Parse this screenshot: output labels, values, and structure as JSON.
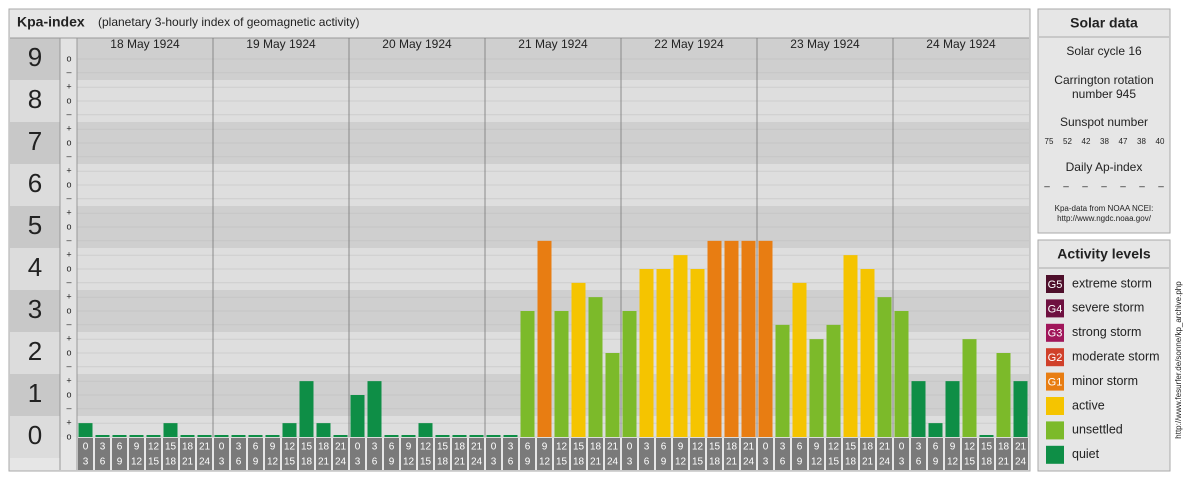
{
  "chart_data": {
    "type": "bar",
    "title": "Kpa-index",
    "subtitle": "(planetary 3-hourly index of geomagnetic activity)",
    "days": [
      "18 May 1924",
      "19 May 1924",
      "20 May 1924",
      "21 May 1924",
      "22 May 1924",
      "23 May 1924",
      "24 May 1924"
    ],
    "hours": [
      0,
      3,
      6,
      9,
      12,
      15,
      18,
      21,
      24
    ],
    "values": [
      0.33,
      0,
      0,
      0,
      0,
      0.33,
      0,
      0,
      0,
      0,
      0,
      0,
      0.33,
      1.33,
      0.33,
      0,
      1,
      1.33,
      0,
      0,
      0.33,
      0,
      0,
      0,
      0,
      0,
      3,
      4.67,
      3,
      3.67,
      3.33,
      2,
      3,
      4,
      4,
      4.33,
      4,
      4.67,
      4.67,
      4.67,
      4.67,
      2.67,
      3.67,
      2.33,
      2.67,
      4.33,
      4,
      3.33,
      3,
      1.33,
      0.33,
      1.33,
      2.33,
      0,
      2,
      1.33
    ],
    "colors": [
      "#0e8e46",
      "#0e8e46",
      "#0e8e46",
      "#0e8e46",
      "#0e8e46",
      "#0e8e46",
      "#0e8e46",
      "#0e8e46",
      "#0e8e46",
      "#0e8e46",
      "#0e8e46",
      "#0e8e46",
      "#0e8e46",
      "#0e8e46",
      "#0e8e46",
      "#0e8e46",
      "#0e8e46",
      "#0e8e46",
      "#0e8e46",
      "#0e8e46",
      "#0e8e46",
      "#0e8e46",
      "#0e8e46",
      "#0e8e46",
      "#0e8e46",
      "#0e8e46",
      "#7cba2a",
      "#e87d12",
      "#7cba2a",
      "#f5c400",
      "#7cba2a",
      "#7cba2a",
      "#7cba2a",
      "#f5c400",
      "#f5c400",
      "#f5c400",
      "#f5c400",
      "#e87d12",
      "#e87d12",
      "#e87d12",
      "#e87d12",
      "#7cba2a",
      "#f5c400",
      "#7cba2a",
      "#7cba2a",
      "#f5c400",
      "#f5c400",
      "#7cba2a",
      "#7cba2a",
      "#0e8e46",
      "#0e8e46",
      "#0e8e46",
      "#7cba2a",
      "#0e8e46",
      "#7cba2a",
      "#0e8e46"
    ],
    "ylim": [
      0,
      9.5
    ],
    "yticks": [
      0,
      1,
      2,
      3,
      4,
      5,
      6,
      7,
      8,
      9
    ],
    "minor_yticks": [
      {
        "value": 0,
        "label": "o"
      },
      {
        "value": 0.33,
        "label": "+"
      },
      {
        "value": 0.67,
        "label": "–"
      },
      {
        "value": 1,
        "label": "o"
      },
      {
        "value": 1.33,
        "label": "+"
      },
      {
        "value": 1.67,
        "label": "–"
      },
      {
        "value": 2,
        "label": "o"
      },
      {
        "value": 2.33,
        "label": "+"
      },
      {
        "value": 2.67,
        "label": "–"
      },
      {
        "value": 3,
        "label": "o"
      },
      {
        "value": 3.33,
        "label": "+"
      },
      {
        "value": 3.67,
        "label": "–"
      },
      {
        "value": 4,
        "label": "o"
      },
      {
        "value": 4.33,
        "label": "+"
      },
      {
        "value": 4.67,
        "label": "–"
      },
      {
        "value": 5,
        "label": "o"
      },
      {
        "value": 5.33,
        "label": "+"
      },
      {
        "value": 5.67,
        "label": "–"
      },
      {
        "value": 6,
        "label": "o"
      },
      {
        "value": 6.33,
        "label": "+"
      },
      {
        "value": 6.67,
        "label": "–"
      },
      {
        "value": 7,
        "label": "o"
      },
      {
        "value": 7.33,
        "label": "+"
      },
      {
        "value": 7.67,
        "label": "–"
      },
      {
        "value": 8,
        "label": "o"
      },
      {
        "value": 8.33,
        "label": "+"
      },
      {
        "value": 8.67,
        "label": "–"
      },
      {
        "value": 9,
        "label": "o"
      }
    ],
    "grid": true
  },
  "solar_data": {
    "title": "Solar data",
    "cycle": "Solar cycle 16",
    "carrington": [
      "Carrington rotation",
      "number 945"
    ],
    "sunspot_label": "Sunspot number",
    "sunspots": [
      75,
      52,
      42,
      38,
      47,
      38,
      40
    ],
    "ap_label": "Daily Ap-index",
    "ap": [
      "–",
      "–",
      "–",
      "–",
      "–",
      "–",
      "–"
    ],
    "source": [
      "Kpa-data from NOAA NCEI:",
      "http://www.ngdc.noaa.gov/"
    ]
  },
  "activity": {
    "title": "Activity levels",
    "levels": [
      {
        "badge": "G5",
        "name": "extreme storm",
        "color": "#4e0f2b"
      },
      {
        "badge": "G4",
        "name": "severe storm",
        "color": "#6e1040"
      },
      {
        "badge": "G3",
        "name": "strong storm",
        "color": "#a0165a"
      },
      {
        "badge": "G2",
        "name": "moderate storm",
        "color": "#d0402a"
      },
      {
        "badge": "G1",
        "name": "minor storm",
        "color": "#e87d12"
      },
      {
        "badge": null,
        "name": "active",
        "color": "#f5c400"
      },
      {
        "badge": null,
        "name": "unsettled",
        "color": "#7cba2a"
      },
      {
        "badge": null,
        "name": "quiet",
        "color": "#0e8e46"
      }
    ]
  },
  "watermark": "http://www.fesurfer.de/sonne/kp_archive.php"
}
